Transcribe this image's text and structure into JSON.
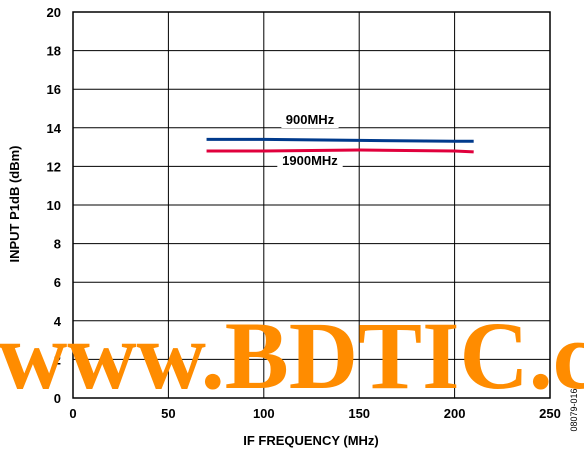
{
  "chart_data": {
    "type": "line",
    "xlabel": "IF FREQUENCY (MHz)",
    "ylabel": "INPUT P1dB (dBm)",
    "xlim": [
      0,
      250
    ],
    "ylim": [
      0,
      20
    ],
    "x_ticks": [
      0,
      50,
      100,
      150,
      200,
      250
    ],
    "y_ticks": [
      0,
      2,
      4,
      6,
      8,
      10,
      12,
      14,
      16,
      18,
      20
    ],
    "grid": true,
    "series": [
      {
        "name": "900MHz",
        "color": "#003a8c",
        "x": [
          70,
          100,
          150,
          200,
          210
        ],
        "y": [
          13.4,
          13.4,
          13.35,
          13.3,
          13.3
        ]
      },
      {
        "name": "1900MHz",
        "color": "#e0003c",
        "x": [
          70,
          100,
          150,
          200,
          210
        ],
        "y": [
          12.8,
          12.8,
          12.85,
          12.8,
          12.75
        ]
      }
    ]
  },
  "watermark": "www.BDTIC.com",
  "figure_id": "08079-016"
}
